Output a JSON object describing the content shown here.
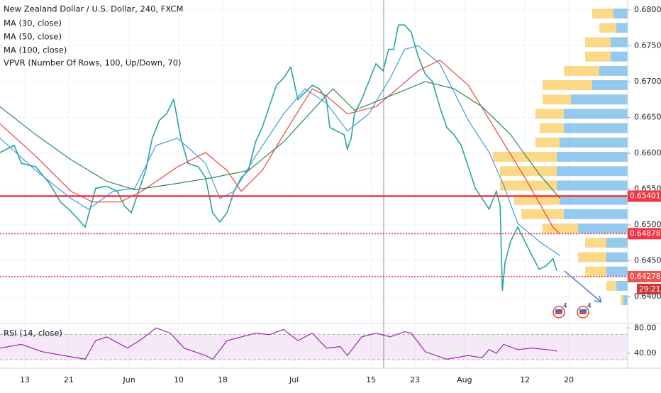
{
  "chart_data": [
    {
      "type": "line",
      "title": "New Zealand Dollar / U.S. Dollar, 240, FXCM",
      "xlim": [
        8.5,
        122.7
      ],
      "xticks": [
        {
          "value": 13,
          "label": "13"
        },
        {
          "value": 21,
          "label": "21"
        },
        {
          "value": 32,
          "label": "Jun"
        },
        {
          "value": 41,
          "label": "10"
        },
        {
          "value": 49,
          "label": "18"
        },
        {
          "value": 62,
          "label": "Jul"
        },
        {
          "value": 76,
          "label": "15"
        },
        {
          "value": 84,
          "label": "23"
        },
        {
          "value": 93,
          "label": "Aug"
        },
        {
          "value": 104,
          "label": "12"
        },
        {
          "value": 112,
          "label": "20"
        }
      ],
      "ylim": [
        0.63634,
        0.68139
      ],
      "yticks": [
        {
          "value": 0.64,
          "label": "0.64000"
        },
        {
          "value": 0.645,
          "label": "0.64500"
        },
        {
          "value": 0.65,
          "label": "0.65000"
        },
        {
          "value": 0.655,
          "label": "0.65500"
        },
        {
          "value": 0.66,
          "label": "0.66000"
        },
        {
          "value": 0.665,
          "label": "0.66500"
        },
        {
          "value": 0.67,
          "label": "0.67000"
        },
        {
          "value": 0.675,
          "label": "0.67500"
        },
        {
          "value": 0.68,
          "label": "0.68000"
        }
      ],
      "series": [
        {
          "color": "#26a69a",
          "x": [
            8.5,
            11.1,
            12.4,
            15.0,
            17.5,
            19.5,
            21.4,
            24.0,
            25.9,
            27.9,
            29.8,
            31.1,
            32.4,
            33.7,
            35.0,
            36.2,
            37.5,
            38.8,
            40.1,
            41.4,
            42.7,
            44.6,
            45.9,
            47.2,
            48.5,
            49.8,
            51.1,
            52.4,
            53.7,
            55.0,
            56.2,
            57.5,
            58.8,
            60.1,
            61.4,
            62.7,
            64.0,
            65.3,
            66.6,
            67.9,
            68.5,
            69.8,
            71.1,
            71.7,
            72.4,
            73.0,
            74.3,
            75.6,
            76.9,
            78.2,
            79.2,
            80.1,
            81.0,
            82.1,
            83.3,
            84.6,
            85.9,
            87.2,
            88.5,
            89.8,
            91.1,
            92.4,
            93.7,
            95.0,
            96.2,
            97.5,
            98.8,
            99.5,
            99.9,
            100.4,
            101.4,
            102.7,
            104.0,
            105.3,
            106.6,
            107.9,
            109.1,
            109.8
          ],
          "values": [
            0.6601,
            0.6611,
            0.6586,
            0.6581,
            0.6558,
            0.6532,
            0.6519,
            0.6497,
            0.6551,
            0.6554,
            0.6547,
            0.6527,
            0.6517,
            0.6547,
            0.6576,
            0.6621,
            0.6646,
            0.6655,
            0.6675,
            0.6621,
            0.6586,
            0.6581,
            0.6566,
            0.6517,
            0.6504,
            0.6517,
            0.6547,
            0.6566,
            0.6576,
            0.6616,
            0.6636,
            0.6665,
            0.6695,
            0.6705,
            0.672,
            0.6675,
            0.6685,
            0.6695,
            0.669,
            0.6675,
            0.6636,
            0.6631,
            0.6626,
            0.6606,
            0.6621,
            0.6655,
            0.6675,
            0.67,
            0.6725,
            0.6715,
            0.6745,
            0.6745,
            0.6779,
            0.6779,
            0.6769,
            0.6735,
            0.671,
            0.67,
            0.6665,
            0.6636,
            0.6626,
            0.6611,
            0.6581,
            0.6551,
            0.6537,
            0.6522,
            0.6547,
            0.6527,
            0.6408,
            0.6448,
            0.6477,
            0.6497,
            0.6477,
            0.6457,
            0.6438,
            0.6443,
            0.6453,
            0.6436
          ]
        },
        {
          "name": "MA (30, close)",
          "color": "#3d9ee0",
          "x": [
            8.5,
            15.0,
            21.4,
            24.6,
            29.1,
            33.0,
            36.9,
            40.8,
            45.9,
            48.5,
            51.1,
            55.0,
            60.1,
            64.0,
            67.9,
            71.7,
            75.6,
            79.5,
            82.1,
            84.6,
            88.5,
            93.7,
            97.5,
            100.1,
            102.7,
            106.6,
            110.4
          ],
          "values": [
            0.6621,
            0.6576,
            0.6537,
            0.6522,
            0.6547,
            0.6551,
            0.6611,
            0.6621,
            0.6586,
            0.6537,
            0.6547,
            0.6596,
            0.6655,
            0.669,
            0.667,
            0.6631,
            0.6655,
            0.6705,
            0.6745,
            0.675,
            0.6725,
            0.6646,
            0.6601,
            0.6556,
            0.6502,
            0.6477,
            0.6457
          ]
        },
        {
          "name": "MA (50, close)",
          "color": "#e8453c",
          "x": [
            8.5,
            15.0,
            21.4,
            25.3,
            30.4,
            34.3,
            40.8,
            45.9,
            49.8,
            52.4,
            56.2,
            60.1,
            65.3,
            67.9,
            71.7,
            76.9,
            80.8,
            84.6,
            88.5,
            93.7,
            98.8,
            104.0,
            109.1,
            110.4
          ],
          "values": [
            0.6641,
            0.6596,
            0.6547,
            0.6532,
            0.6532,
            0.6547,
            0.6581,
            0.6601,
            0.6576,
            0.6547,
            0.6576,
            0.6626,
            0.669,
            0.668,
            0.6655,
            0.6665,
            0.669,
            0.6715,
            0.673,
            0.6695,
            0.6631,
            0.6566,
            0.6497,
            0.6487
          ]
        },
        {
          "name": "MA (100, close)",
          "color": "#2e8b57",
          "x": [
            8.5,
            15.0,
            21.4,
            27.9,
            33.0,
            40.8,
            47.2,
            53.7,
            60.1,
            66.6,
            69.1,
            73.0,
            79.5,
            85.9,
            91.1,
            96.2,
            101.4,
            106.6,
            110.4
          ],
          "values": [
            0.6665,
            0.6626,
            0.6591,
            0.6561,
            0.6549,
            0.6558,
            0.6566,
            0.6576,
            0.6616,
            0.667,
            0.669,
            0.666,
            0.668,
            0.67,
            0.669,
            0.6665,
            0.6626,
            0.6571,
            0.6537
          ]
        }
      ],
      "volume_profile": {
        "title": "VPVR (Number Of Rows, 100, Up/Down, 70)",
        "xlim": [
          0,
          100
        ],
        "levels": [
          0.6795,
          0.6775,
          0.6755,
          0.6735,
          0.6715,
          0.6695,
          0.6675,
          0.6655,
          0.6635,
          0.6615,
          0.6595,
          0.6575,
          0.6555,
          0.6535,
          0.6515,
          0.6495,
          0.6475,
          0.6455,
          0.6435,
          0.6415,
          0.6395
        ],
        "series": [
          {
            "color": "#3d9ee0",
            "values": [
              10,
              8,
              12,
              12,
              20,
              25,
              40,
              45,
              45,
              48,
              50,
              50,
              50,
              48,
              45,
              35,
              15,
              15,
              15,
              8,
              3
            ]
          },
          {
            "color": "#f7b928",
            "values": [
              15,
              12,
              18,
              18,
              25,
              35,
              20,
              20,
              17,
              17,
              45,
              40,
              40,
              32,
              30,
              25,
              15,
              20,
              15,
              7,
              2
            ]
          }
        ]
      },
      "price_lines": [
        {
          "value": 0.65401,
          "color": "#f23645",
          "style": "solid"
        },
        {
          "value": 0.64878,
          "color": "#f23645",
          "style": "dotted"
        },
        {
          "value": 0.64278,
          "color": "#ef5350",
          "style": "dotted"
        }
      ],
      "countdown": "29:21",
      "event_badges": [
        "4",
        "4"
      ]
    },
    {
      "type": "line",
      "title": "RSI (14, close)",
      "xlim": [
        8.5,
        122.7
      ],
      "ylim": [
        18.8,
        85.9
      ],
      "yticks": [
        {
          "value": 80,
          "label": "80.00"
        },
        {
          "value": 40,
          "label": "40.00"
        }
      ],
      "band": [
        30,
        70
      ],
      "series": [
        {
          "color": "#9c27b0",
          "x": [
            8.5,
            12.4,
            16.2,
            20.1,
            24.0,
            25.9,
            27.9,
            31.7,
            34.3,
            36.9,
            39.5,
            42.0,
            45.9,
            47.2,
            49.8,
            52.4,
            55.0,
            57.5,
            60.1,
            62.7,
            65.3,
            67.9,
            70.4,
            71.7,
            74.3,
            76.9,
            79.5,
            82.1,
            83.3,
            85.9,
            89.8,
            93.7,
            96.2,
            97.5,
            98.8,
            100.1,
            102.7,
            105.3,
            107.9,
            109.8
          ],
          "values": [
            48.2,
            54.1,
            42.4,
            36.5,
            30.6,
            60,
            65.9,
            48.2,
            62.4,
            80,
            71.8,
            48.2,
            36.5,
            30.6,
            60,
            65.9,
            71.8,
            69.4,
            77.6,
            60,
            71.8,
            48.2,
            50.6,
            36.5,
            65.9,
            71.8,
            65.9,
            74.1,
            71.8,
            42.4,
            30.6,
            36.5,
            32.9,
            45.9,
            40,
            54.1,
            45.9,
            48.2,
            45.9,
            43.5
          ]
        }
      ]
    }
  ]
}
